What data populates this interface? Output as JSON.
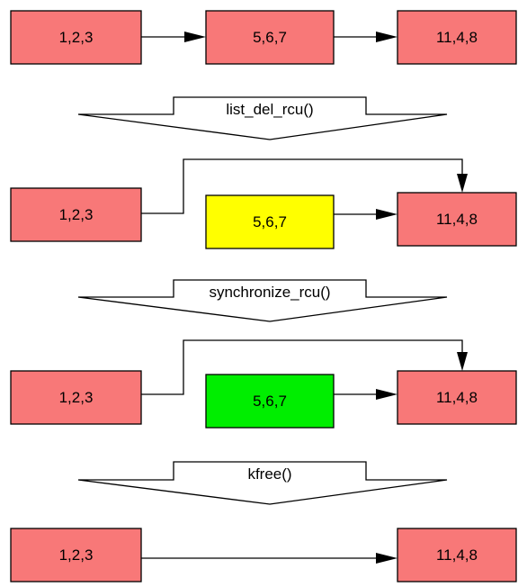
{
  "colors": {
    "node": "#f87878",
    "removed": "#ffff00",
    "safe_to_free": "#00ee00",
    "arrow_fill": "#ffffff",
    "line": "#000000"
  },
  "steps": [
    {
      "nodes": [
        "1,2,3",
        "5,6,7",
        "11,4,8"
      ]
    },
    {
      "operation": "list_del_rcu()"
    },
    {
      "nodes": [
        "1,2,3",
        "5,6,7",
        "11,4,8"
      ]
    },
    {
      "operation": "synchronize_rcu()"
    },
    {
      "nodes": [
        "1,2,3",
        "5,6,7",
        "11,4,8"
      ]
    },
    {
      "operation": "kfree()"
    },
    {
      "nodes": [
        "1,2,3",
        "11,4,8"
      ]
    }
  ]
}
